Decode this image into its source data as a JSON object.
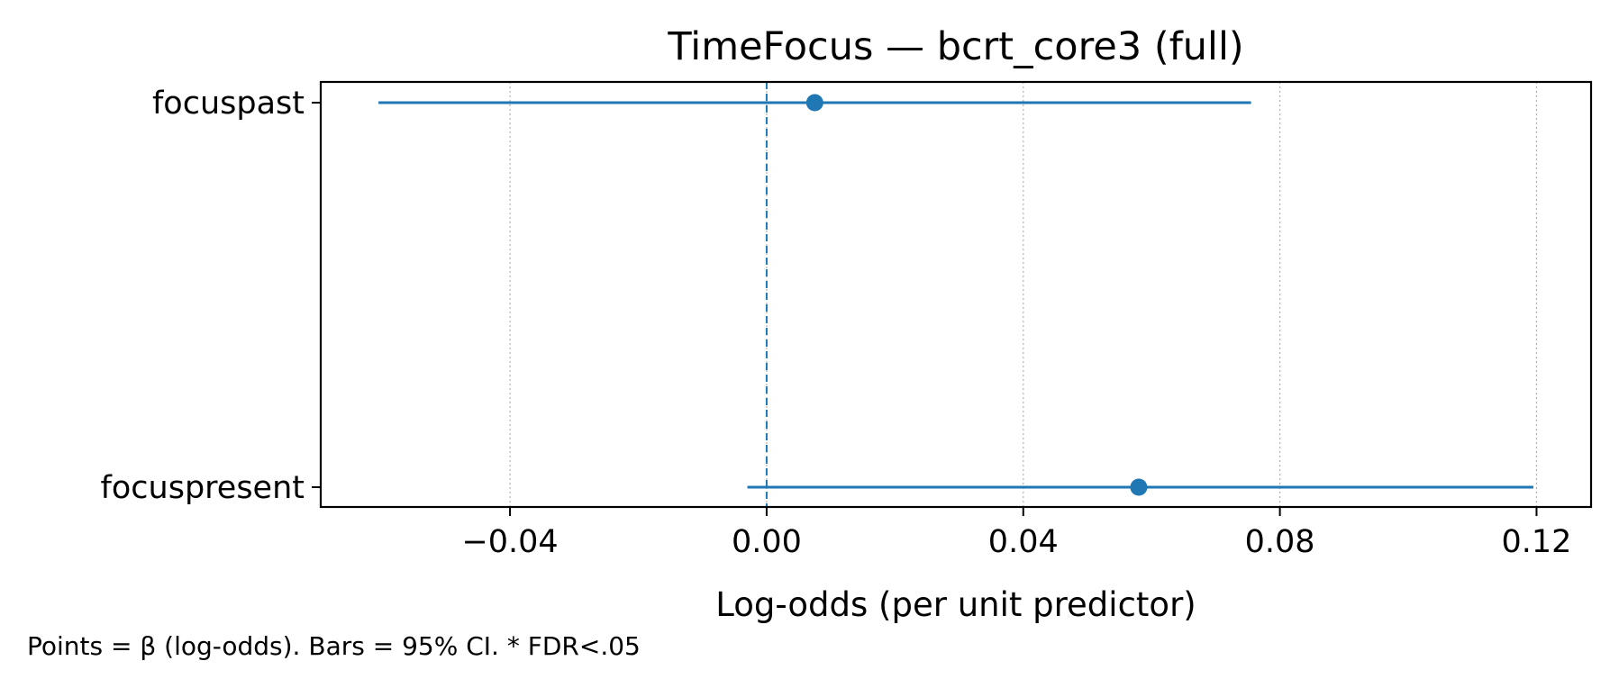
{
  "chart_data": {
    "type": "forest",
    "title": "TimeFocus — bcrt_core3 (full)",
    "xlabel": "Log-odds (per unit predictor)",
    "ylabel": "",
    "footnote": "Points = β (log-odds). Bars = 95% CI. * FDR<.05",
    "xlim": [
      -0.0695,
      0.1285
    ],
    "xticks": [
      -0.04,
      0.0,
      0.04,
      0.08,
      0.12
    ],
    "xtick_labels": [
      "−0.04",
      "0.00",
      "0.04",
      "0.08",
      "0.12"
    ],
    "reference_line": 0.0,
    "grid": "x dotted",
    "categories": [
      "focuspast",
      "focuspresent"
    ],
    "estimates": [
      0.0075,
      0.058
    ],
    "ci_low": [
      -0.0605,
      -0.003
    ],
    "ci_high": [
      0.0755,
      0.1195
    ],
    "color": "#1f77b4"
  }
}
